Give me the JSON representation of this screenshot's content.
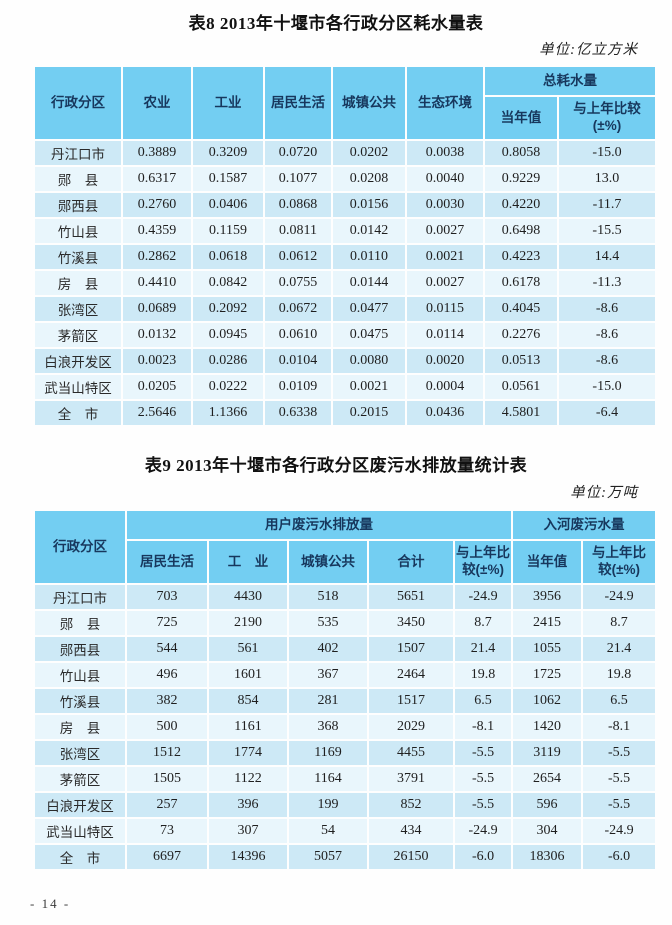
{
  "page": {
    "footer_page_number": "- 14 -"
  },
  "colors": {
    "header_bg": "#73CEF2",
    "header_text": "#17375D",
    "row_odd_bg": "#CDE9F6",
    "row_even_bg": "#E9F6FC",
    "grid_line": "#FFFFFF"
  },
  "table8": {
    "title": "表8 2013年十堰市各行政分区耗水量表",
    "unit": "单位:亿立方米",
    "header": {
      "region": "行政分区",
      "cols": [
        "农业",
        "工业",
        "居民生活",
        "城镇公共",
        "生态环境"
      ],
      "total_group": "总耗水量",
      "total_cols": [
        "当年值",
        "与上年比较\n(±%)"
      ]
    },
    "rows": [
      [
        "丹江口市",
        "0.3889",
        "0.3209",
        "0.0720",
        "0.0202",
        "0.0038",
        "0.8058",
        "-15.0"
      ],
      [
        "郧　县",
        "0.6317",
        "0.1587",
        "0.1077",
        "0.0208",
        "0.0040",
        "0.9229",
        "13.0"
      ],
      [
        "郧西县",
        "0.2760",
        "0.0406",
        "0.0868",
        "0.0156",
        "0.0030",
        "0.4220",
        "-11.7"
      ],
      [
        "竹山县",
        "0.4359",
        "0.1159",
        "0.0811",
        "0.0142",
        "0.0027",
        "0.6498",
        "-15.5"
      ],
      [
        "竹溪县",
        "0.2862",
        "0.0618",
        "0.0612",
        "0.0110",
        "0.0021",
        "0.4223",
        "14.4"
      ],
      [
        "房　县",
        "0.4410",
        "0.0842",
        "0.0755",
        "0.0144",
        "0.0027",
        "0.6178",
        "-11.3"
      ],
      [
        "张湾区",
        "0.0689",
        "0.2092",
        "0.0672",
        "0.0477",
        "0.0115",
        "0.4045",
        "-8.6"
      ],
      [
        "茅箭区",
        "0.0132",
        "0.0945",
        "0.0610",
        "0.0475",
        "0.0114",
        "0.2276",
        "-8.6"
      ],
      [
        "白浪开发区",
        "0.0023",
        "0.0286",
        "0.0104",
        "0.0080",
        "0.0020",
        "0.0513",
        "-8.6"
      ],
      [
        "武当山特区",
        "0.0205",
        "0.0222",
        "0.0109",
        "0.0021",
        "0.0004",
        "0.0561",
        "-15.0"
      ],
      [
        "全　市",
        "2.5646",
        "1.1366",
        "0.6338",
        "0.2015",
        "0.0436",
        "4.5801",
        "-6.4"
      ]
    ]
  },
  "table9": {
    "title": "表9 2013年十堰市各行政分区废污水排放量统计表",
    "unit": "单位:万吨",
    "header": {
      "region": "行政分区",
      "user_group": "用户废污水排放量",
      "user_cols": [
        "居民生活",
        "工　业",
        "城镇公共",
        "合计",
        "与上年比\n较(±%)"
      ],
      "river_group": "入河废污水量",
      "river_cols": [
        "当年值",
        "与上年比\n较(±%)"
      ]
    },
    "rows": [
      [
        "丹江口市",
        "703",
        "4430",
        "518",
        "5651",
        "-24.9",
        "3956",
        "-24.9"
      ],
      [
        "郧　县",
        "725",
        "2190",
        "535",
        "3450",
        "8.7",
        "2415",
        "8.7"
      ],
      [
        "郧西县",
        "544",
        "561",
        "402",
        "1507",
        "21.4",
        "1055",
        "21.4"
      ],
      [
        "竹山县",
        "496",
        "1601",
        "367",
        "2464",
        "19.8",
        "1725",
        "19.8"
      ],
      [
        "竹溪县",
        "382",
        "854",
        "281",
        "1517",
        "6.5",
        "1062",
        "6.5"
      ],
      [
        "房　县",
        "500",
        "1161",
        "368",
        "2029",
        "-8.1",
        "1420",
        "-8.1"
      ],
      [
        "张湾区",
        "1512",
        "1774",
        "1169",
        "4455",
        "-5.5",
        "3119",
        "-5.5"
      ],
      [
        "茅箭区",
        "1505",
        "1122",
        "1164",
        "3791",
        "-5.5",
        "2654",
        "-5.5"
      ],
      [
        "白浪开发区",
        "257",
        "396",
        "199",
        "852",
        "-5.5",
        "596",
        "-5.5"
      ],
      [
        "武当山特区",
        "73",
        "307",
        "54",
        "434",
        "-24.9",
        "304",
        "-24.9"
      ],
      [
        "全　市",
        "6697",
        "14396",
        "5057",
        "26150",
        "-6.0",
        "18306",
        "-6.0"
      ]
    ]
  }
}
